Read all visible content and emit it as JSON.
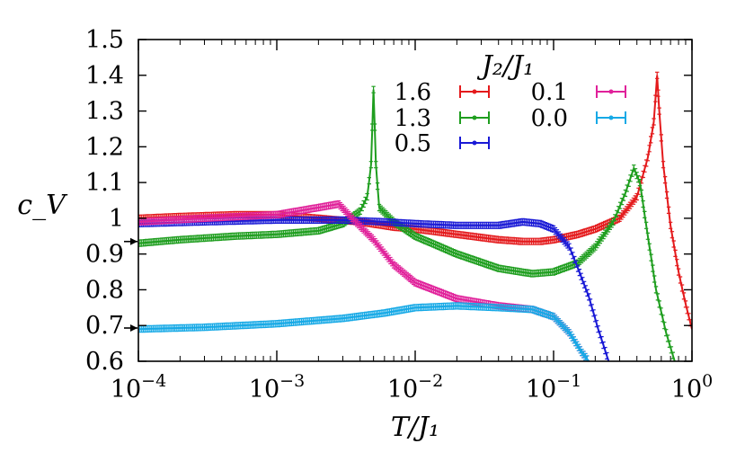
{
  "chart_data": {
    "type": "line",
    "xlabel": "T/J₁",
    "ylabel": "c_V",
    "x_scale": "log",
    "xlim": [
      0.0001,
      1
    ],
    "ylim": [
      0.6,
      1.5
    ],
    "x_ticks": [
      {
        "value": 0.0001,
        "base": "10",
        "exp": "−4"
      },
      {
        "value": 0.001,
        "base": "10",
        "exp": "−3"
      },
      {
        "value": 0.01,
        "base": "10",
        "exp": "−2"
      },
      {
        "value": 0.1,
        "base": "10",
        "exp": "−1"
      },
      {
        "value": 1,
        "base": "10",
        "exp": "0"
      }
    ],
    "y_ticks": [
      {
        "value": 0.6,
        "label": "0.6"
      },
      {
        "value": 0.7,
        "label": "0.7"
      },
      {
        "value": 0.8,
        "label": "0.8"
      },
      {
        "value": 0.9,
        "label": "0.9"
      },
      {
        "value": 1.0,
        "label": "1"
      },
      {
        "value": 1.1,
        "label": "1.1"
      },
      {
        "value": 1.2,
        "label": "1.2"
      },
      {
        "value": 1.3,
        "label": "1.3"
      },
      {
        "value": 1.4,
        "label": "1.4"
      },
      {
        "value": 1.5,
        "label": "1.5"
      }
    ],
    "legend_title": "J₂/J₁",
    "legend_position": "top-right",
    "arrows": [
      {
        "y": 0.935
      },
      {
        "y": 0.693
      }
    ],
    "series": [
      {
        "name": "1.6",
        "color": "#e41a1c",
        "points": [
          [
            0.0001,
            1.0
          ],
          [
            0.0002,
            1.005
          ],
          [
            0.0005,
            1.01
          ],
          [
            0.001,
            1.01
          ],
          [
            0.002,
            1.0
          ],
          [
            0.004,
            0.99
          ],
          [
            0.007,
            0.975
          ],
          [
            0.01,
            0.97
          ],
          [
            0.02,
            0.955
          ],
          [
            0.04,
            0.94
          ],
          [
            0.06,
            0.935
          ],
          [
            0.08,
            0.935
          ],
          [
            0.1,
            0.94
          ],
          [
            0.15,
            0.955
          ],
          [
            0.2,
            0.97
          ],
          [
            0.3,
            1.0
          ],
          [
            0.4,
            1.06
          ],
          [
            0.48,
            1.17
          ],
          [
            0.53,
            1.27
          ],
          [
            0.56,
            1.4
          ],
          [
            0.58,
            1.3
          ],
          [
            0.62,
            1.15
          ],
          [
            0.7,
            0.98
          ],
          [
            0.8,
            0.85
          ],
          [
            0.9,
            0.76
          ],
          [
            1.0,
            0.69
          ]
        ]
      },
      {
        "name": "1.3",
        "color": "#1f9e1f",
        "points": [
          [
            0.0001,
            0.93
          ],
          [
            0.0002,
            0.94
          ],
          [
            0.0005,
            0.95
          ],
          [
            0.001,
            0.955
          ],
          [
            0.002,
            0.965
          ],
          [
            0.003,
            0.985
          ],
          [
            0.004,
            1.02
          ],
          [
            0.0045,
            1.06
          ],
          [
            0.0048,
            1.15
          ],
          [
            0.005,
            1.36
          ],
          [
            0.0052,
            1.15
          ],
          [
            0.0055,
            1.03
          ],
          [
            0.007,
            0.99
          ],
          [
            0.01,
            0.95
          ],
          [
            0.02,
            0.9
          ],
          [
            0.04,
            0.86
          ],
          [
            0.07,
            0.845
          ],
          [
            0.1,
            0.85
          ],
          [
            0.15,
            0.875
          ],
          [
            0.2,
            0.92
          ],
          [
            0.27,
            0.99
          ],
          [
            0.33,
            1.07
          ],
          [
            0.38,
            1.14
          ],
          [
            0.42,
            1.1
          ],
          [
            0.48,
            0.95
          ],
          [
            0.55,
            0.8
          ],
          [
            0.65,
            0.68
          ],
          [
            0.75,
            0.6
          ]
        ]
      },
      {
        "name": "0.5",
        "color": "#1a1ad6",
        "points": [
          [
            0.0001,
            0.985
          ],
          [
            0.0003,
            0.99
          ],
          [
            0.001,
            0.995
          ],
          [
            0.003,
            0.995
          ],
          [
            0.006,
            0.99
          ],
          [
            0.01,
            0.985
          ],
          [
            0.02,
            0.98
          ],
          [
            0.04,
            0.98
          ],
          [
            0.06,
            0.99
          ],
          [
            0.08,
            0.985
          ],
          [
            0.1,
            0.97
          ],
          [
            0.13,
            0.92
          ],
          [
            0.15,
            0.86
          ],
          [
            0.18,
            0.78
          ],
          [
            0.21,
            0.69
          ],
          [
            0.25,
            0.6
          ]
        ]
      },
      {
        "name": "0.1",
        "color": "#e0219a",
        "points": [
          [
            0.0001,
            0.99
          ],
          [
            0.0003,
            1.0
          ],
          [
            0.001,
            1.01
          ],
          [
            0.002,
            1.03
          ],
          [
            0.0028,
            1.04
          ],
          [
            0.0035,
            1.0
          ],
          [
            0.005,
            0.94
          ],
          [
            0.007,
            0.87
          ],
          [
            0.01,
            0.82
          ],
          [
            0.02,
            0.775
          ],
          [
            0.04,
            0.755
          ],
          [
            0.07,
            0.745
          ],
          [
            0.1,
            0.725
          ],
          [
            0.13,
            0.68
          ],
          [
            0.16,
            0.625
          ],
          [
            0.18,
            0.6
          ]
        ]
      },
      {
        "name": "0.0",
        "color": "#16a9e6",
        "points": [
          [
            0.0001,
            0.69
          ],
          [
            0.0003,
            0.695
          ],
          [
            0.001,
            0.705
          ],
          [
            0.003,
            0.72
          ],
          [
            0.006,
            0.735
          ],
          [
            0.01,
            0.75
          ],
          [
            0.02,
            0.755
          ],
          [
            0.04,
            0.75
          ],
          [
            0.07,
            0.745
          ],
          [
            0.1,
            0.725
          ],
          [
            0.13,
            0.68
          ],
          [
            0.16,
            0.625
          ],
          [
            0.18,
            0.6
          ]
        ]
      }
    ]
  }
}
